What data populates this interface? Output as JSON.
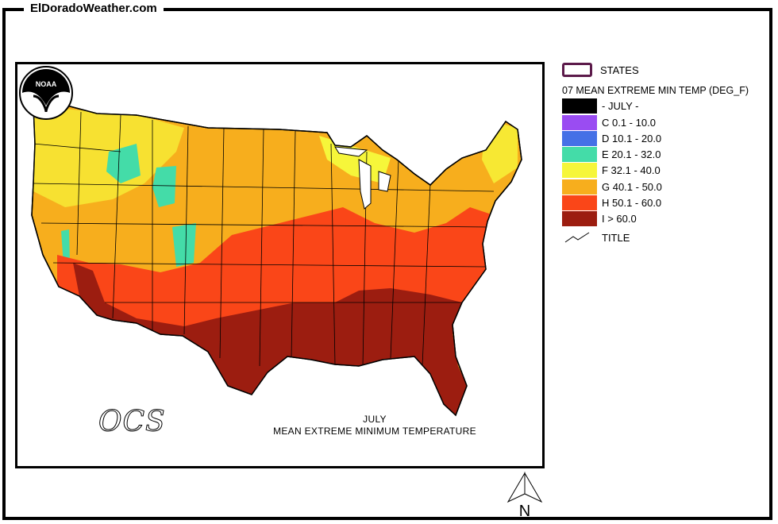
{
  "site": {
    "title": "ElDoradoWeather.com"
  },
  "map": {
    "caption_line1": "JULY",
    "caption_line2": "MEAN EXTREME MINIMUM TEMPERATURE",
    "logo_text": "NOAA",
    "agency_text": "OCS",
    "north_label": "N"
  },
  "legend": {
    "states_label": "STATES",
    "layer_title": "07 MEAN EXTREME MIN TEMP (DEG_F)",
    "classes": [
      {
        "label": "- JULY -",
        "color": "#000000"
      },
      {
        "label": "C 0.1 - 10.0",
        "color": "#9a4cf2"
      },
      {
        "label": "D 10.1 - 20.0",
        "color": "#4570e6"
      },
      {
        "label": "E 20.1 - 32.0",
        "color": "#44dca8"
      },
      {
        "label": "F 32.1 - 40.0",
        "color": "#f6f63a"
      },
      {
        "label": "G 40.1 - 50.0",
        "color": "#f7ae1d"
      },
      {
        "label": "H 50.1 - 60.0",
        "color": "#fa4618"
      },
      {
        "label": "I > 60.0",
        "color": "#9c1d10"
      }
    ],
    "title_label": "TITLE"
  }
}
